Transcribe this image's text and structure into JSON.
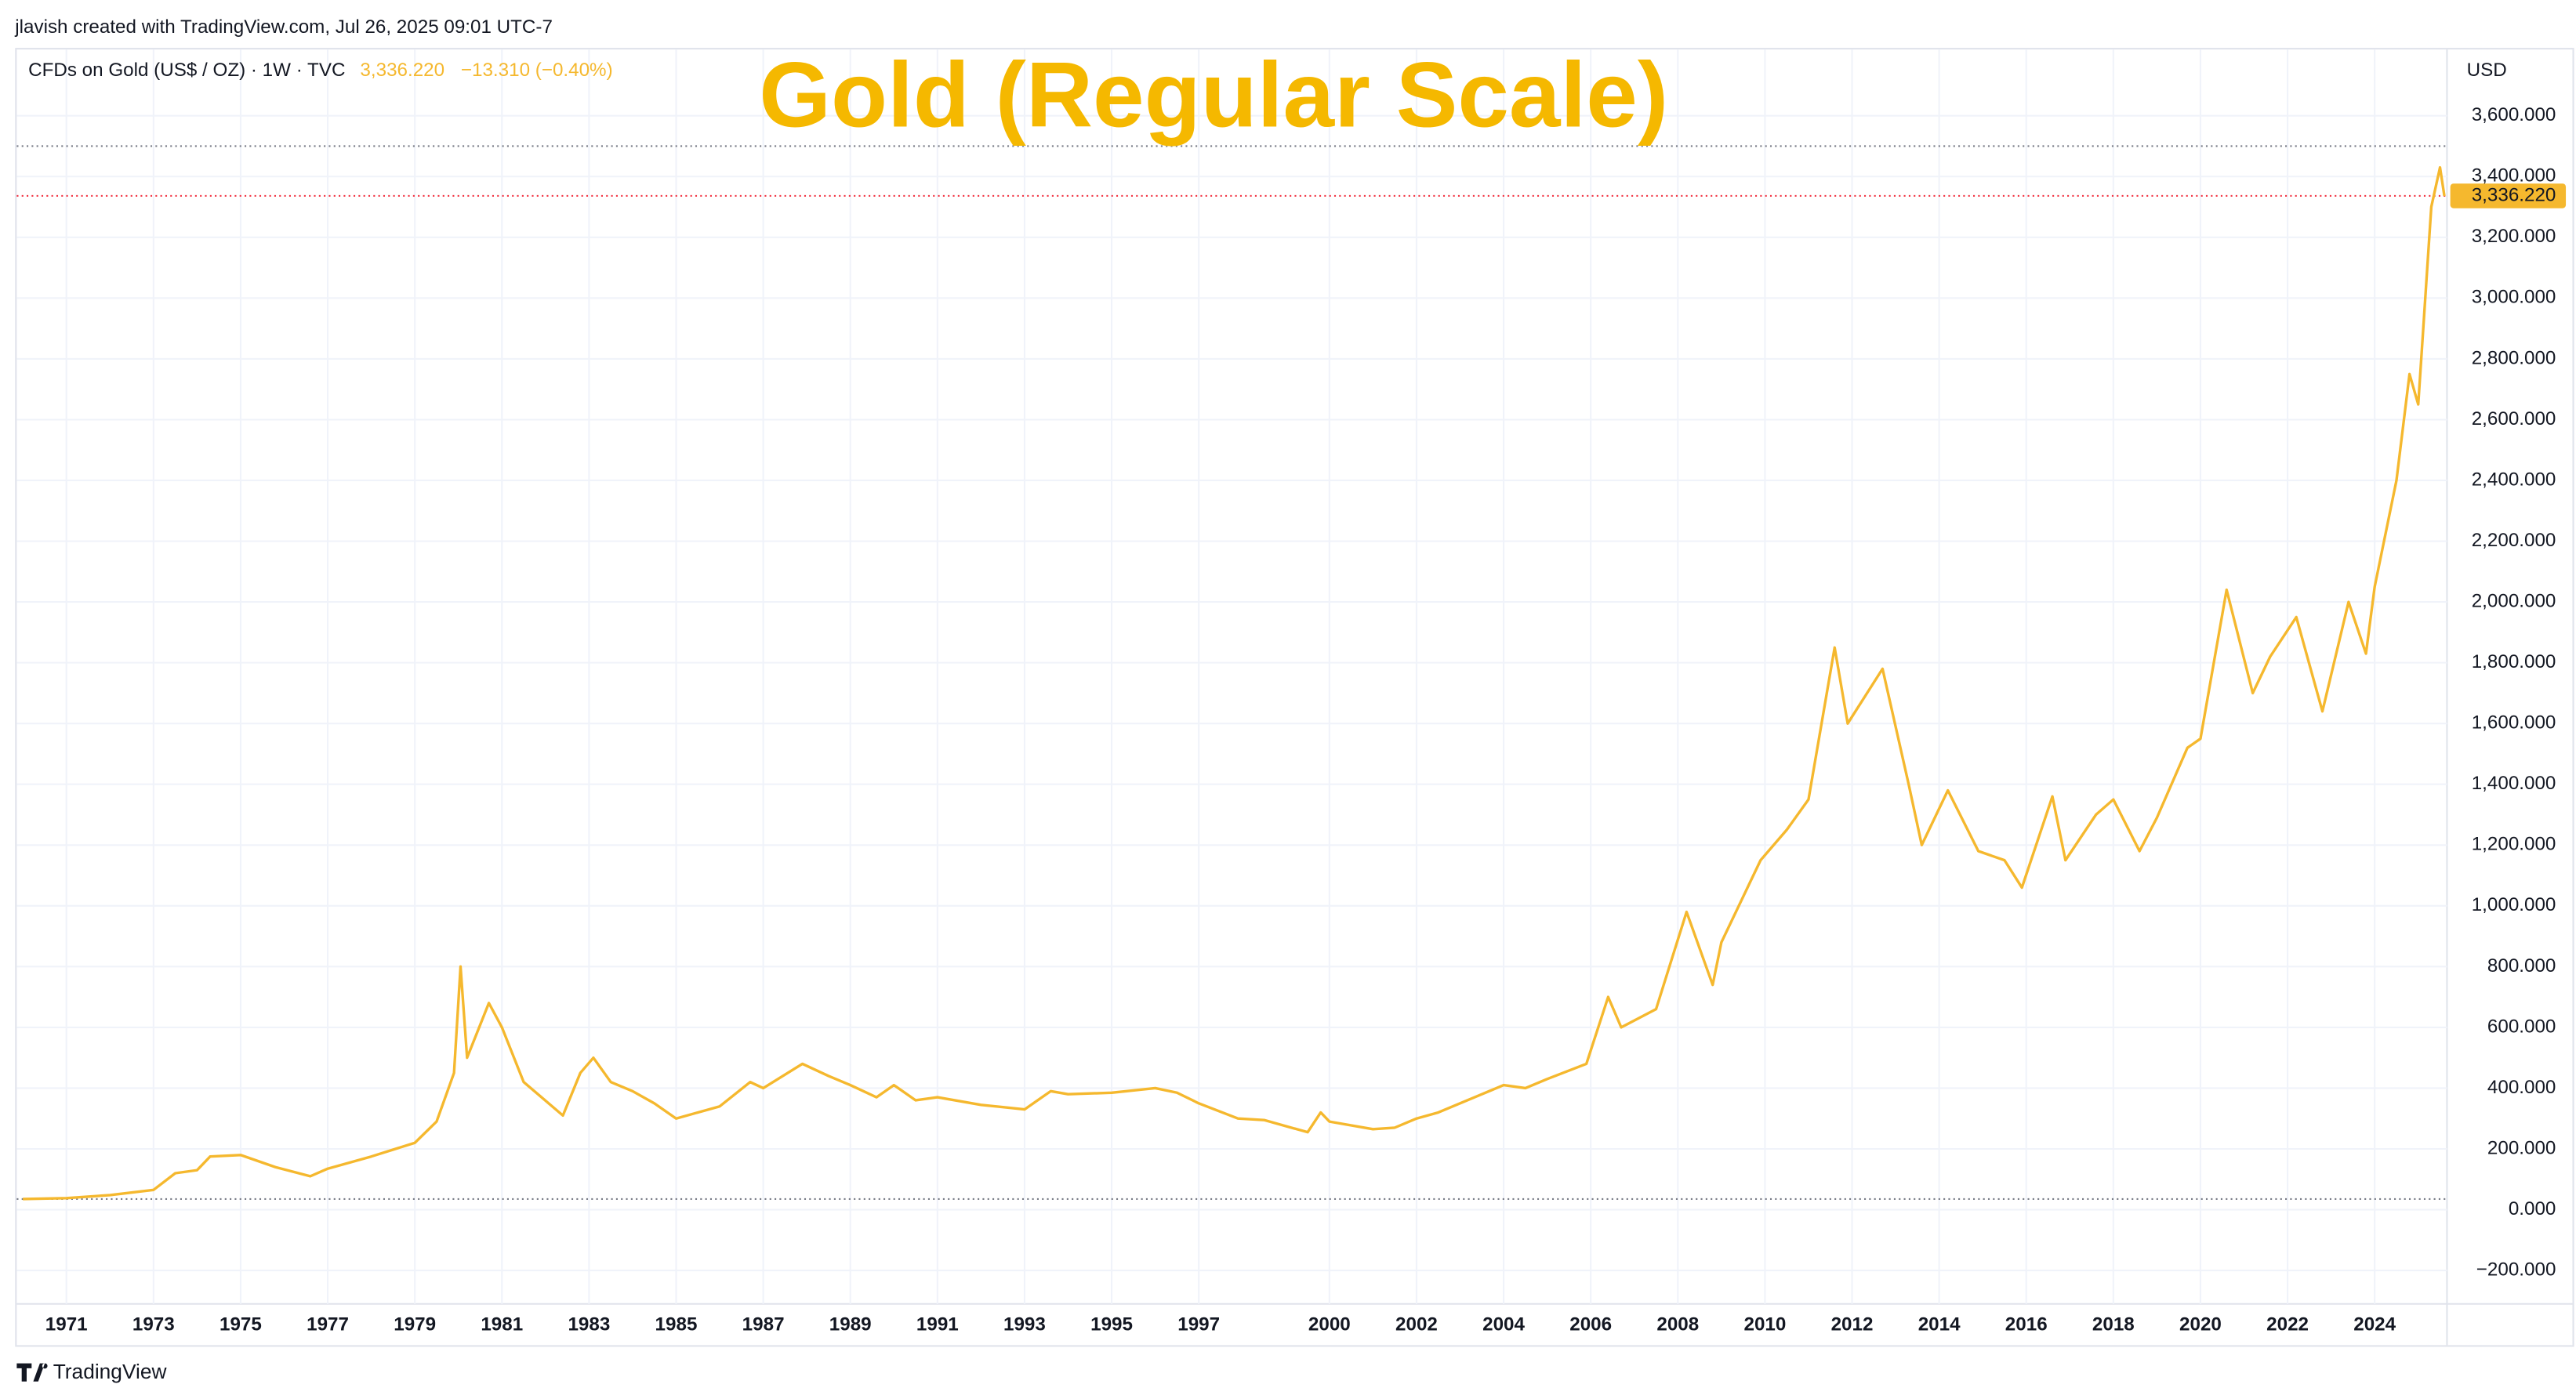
{
  "header": {
    "credit": "jlavish created with TradingView.com, Jul 26, 2025 09:01 UTC-7",
    "symbol": "CFDs on Gold (US$ / OZ) · 1W · TVC",
    "price": "3,336.220",
    "change": "−13.310 (−0.40%)",
    "currency": "USD"
  },
  "footer": {
    "brand": "TradingView"
  },
  "chart_data": {
    "type": "line",
    "title": "Gold (Regular Scale)",
    "x": [
      1970.0,
      1971.0,
      1972.0,
      1973.0,
      1973.5,
      1974.0,
      1974.3,
      1975.0,
      1975.8,
      1976.6,
      1977.0,
      1978.0,
      1979.0,
      1979.5,
      1979.9,
      1980.05,
      1980.2,
      1980.7,
      1981.0,
      1981.5,
      1982.4,
      1982.8,
      1983.1,
      1983.5,
      1984.0,
      1984.5,
      1985.0,
      1985.5,
      1986.0,
      1986.7,
      1987.0,
      1987.9,
      1988.5,
      1989.0,
      1989.6,
      1990.0,
      1990.5,
      1991.0,
      1992.0,
      1993.0,
      1993.6,
      1994.0,
      1995.0,
      1996.0,
      1996.5,
      1997.0,
      1997.9,
      1998.5,
      1999.5,
      1999.8,
      2000.0,
      2001.0,
      2001.5,
      2002.0,
      2002.5,
      2003.0,
      2004.0,
      2004.5,
      2005.0,
      2005.9,
      2006.4,
      2006.7,
      2007.5,
      2008.2,
      2008.8,
      2009.0,
      2009.9,
      2010.5,
      2011.0,
      2011.6,
      2011.9,
      2012.7,
      2013.3,
      2013.6,
      2014.2,
      2014.9,
      2015.5,
      2015.9,
      2016.6,
      2016.9,
      2017.6,
      2018.0,
      2018.6,
      2019.0,
      2019.7,
      2020.0,
      2020.6,
      2021.2,
      2021.6,
      2022.2,
      2022.8,
      2023.4,
      2023.8,
      2024.0,
      2024.5,
      2024.8,
      2025.0,
      2025.3,
      2025.5,
      2025.6
    ],
    "series": [
      {
        "name": "CFDs on Gold",
        "color": "#f5b82e",
        "values": [
          35,
          38,
          48,
          65,
          120,
          130,
          175,
          180,
          140,
          110,
          135,
          175,
          220,
          290,
          450,
          800,
          500,
          680,
          600,
          420,
          310,
          450,
          500,
          420,
          390,
          350,
          300,
          320,
          340,
          420,
          400,
          480,
          440,
          410,
          370,
          410,
          360,
          370,
          345,
          330,
          390,
          380,
          385,
          400,
          385,
          350,
          300,
          295,
          255,
          320,
          290,
          265,
          270,
          300,
          320,
          350,
          410,
          400,
          430,
          480,
          700,
          600,
          660,
          980,
          740,
          880,
          1150,
          1250,
          1350,
          1850,
          1600,
          1780,
          1400,
          1200,
          1380,
          1180,
          1150,
          1060,
          1360,
          1150,
          1300,
          1350,
          1180,
          1290,
          1520,
          1550,
          2040,
          1700,
          1820,
          1950,
          1640,
          2000,
          1830,
          2050,
          2400,
          2750,
          2650,
          3300,
          3430,
          3336.22
        ]
      }
    ],
    "last_price": {
      "value": 3336.22,
      "label": "3,336.220"
    },
    "range_lines": [
      35,
      3500
    ],
    "xlim": [
      1969.86,
      2025.66
    ],
    "xticks": [
      1971,
      1973,
      1975,
      1977,
      1979,
      1981,
      1983,
      1985,
      1987,
      1989,
      1991,
      1993,
      1995,
      1997,
      2000,
      2002,
      2004,
      2006,
      2008,
      2010,
      2012,
      2014,
      2016,
      2018,
      2020,
      2022,
      2024
    ],
    "ylim": [
      -310,
      3818
    ],
    "yticks": [
      {
        "value": -200,
        "label": "−200.000"
      },
      {
        "value": 0,
        "label": "0.000"
      },
      {
        "value": 200,
        "label": "200.000"
      },
      {
        "value": 400,
        "label": "400.000"
      },
      {
        "value": 600,
        "label": "600.000"
      },
      {
        "value": 800,
        "label": "800.000"
      },
      {
        "value": 1000,
        "label": "1,000.000"
      },
      {
        "value": 1200,
        "label": "1,200.000"
      },
      {
        "value": 1400,
        "label": "1,400.000"
      },
      {
        "value": 1600,
        "label": "1,600.000"
      },
      {
        "value": 1800,
        "label": "1,800.000"
      },
      {
        "value": 2000,
        "label": "2,000.000"
      },
      {
        "value": 2200,
        "label": "2,200.000"
      },
      {
        "value": 2400,
        "label": "2,400.000"
      },
      {
        "value": 2600,
        "label": "2,600.000"
      },
      {
        "value": 2800,
        "label": "2,800.000"
      },
      {
        "value": 3000,
        "label": "3,000.000"
      },
      {
        "value": 3200,
        "label": "3,200.000"
      },
      {
        "value": 3400,
        "label": "3,400.000"
      },
      {
        "value": 3600,
        "label": "3,600.000"
      }
    ],
    "grid": true
  }
}
